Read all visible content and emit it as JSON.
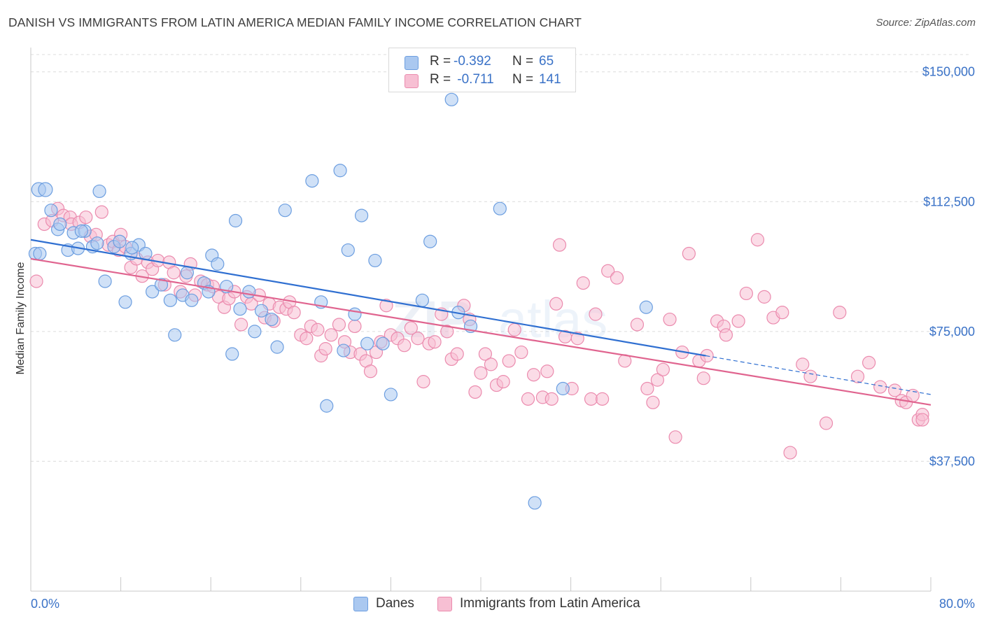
{
  "header": {
    "title": "DANISH VS IMMIGRANTS FROM LATIN AMERICA MEDIAN FAMILY INCOME CORRELATION CHART",
    "source": "Source: ZipAtlas.com"
  },
  "legend": {
    "rows": [
      {
        "r_label": "R =",
        "r_value": "-0.392",
        "n_label": "N =",
        "n_value": "65"
      },
      {
        "r_label": "R =",
        "r_value": " -0.711",
        "n_label": "N =",
        "n_value": "141"
      }
    ]
  },
  "bottom_legend": {
    "danes": "Danes",
    "latin": "Immigrants from Latin America"
  },
  "colors": {
    "danes_fill": "#aac8f0",
    "danes_stroke": "#6c9ee0",
    "danes_line": "#2f6fd1",
    "latin_fill": "#f7bfd3",
    "latin_stroke": "#eb8bae",
    "latin_line": "#e0648f",
    "tick_text": "#3a72c7"
  },
  "chart_data": {
    "type": "scatter",
    "title": "DANISH VS IMMIGRANTS FROM LATIN AMERICA MEDIAN FAMILY INCOME CORRELATION CHART",
    "xlabel": "",
    "ylabel": "Median Family Income",
    "xlim": [
      0,
      80
    ],
    "ylim": [
      0,
      155000
    ],
    "x_tick_labels": [
      "0.0%",
      "80.0%"
    ],
    "y_ticks": [
      37500,
      75000,
      112500,
      150000
    ],
    "y_tick_labels": [
      "$37,500",
      "$75,000",
      "$112,500",
      "$150,000"
    ],
    "grid": true,
    "watermark": "ZIPatlas",
    "series": [
      {
        "name": "Danes",
        "trend": {
          "x0": 0,
          "y0": 101500,
          "x1": 60,
          "y1": 68000,
          "dash_to_x": 80,
          "dash_to_y": 56800
        },
        "points": [
          [
            0.7,
            116000
          ],
          [
            1.3,
            116000
          ],
          [
            1.8,
            110000
          ],
          [
            2.4,
            104500
          ],
          [
            2.6,
            106000
          ],
          [
            3.3,
            98500
          ],
          [
            3.8,
            103500
          ],
          [
            4.2,
            99000
          ],
          [
            4.8,
            104000
          ],
          [
            5.5,
            99500
          ],
          [
            5.9,
            100500
          ],
          [
            6.1,
            115500
          ],
          [
            6.6,
            89500
          ],
          [
            7.4,
            99500
          ],
          [
            7.9,
            101000
          ],
          [
            8.4,
            83500
          ],
          [
            8.9,
            97500
          ],
          [
            9.6,
            100000
          ],
          [
            10.2,
            97500
          ],
          [
            10.8,
            86500
          ],
          [
            11.6,
            88500
          ],
          [
            12.4,
            84000
          ],
          [
            12.8,
            74000
          ],
          [
            13.5,
            85500
          ],
          [
            13.9,
            92000
          ],
          [
            14.3,
            84000
          ],
          [
            15.4,
            89000
          ],
          [
            15.8,
            86500
          ],
          [
            16.1,
            97000
          ],
          [
            16.6,
            94500
          ],
          [
            17.4,
            88000
          ],
          [
            17.9,
            68500
          ],
          [
            18.2,
            107000
          ],
          [
            18.6,
            81500
          ],
          [
            19.4,
            86500
          ],
          [
            19.9,
            75000
          ],
          [
            20.5,
            81000
          ],
          [
            21.4,
            78500
          ],
          [
            21.9,
            70500
          ],
          [
            22.6,
            110000
          ],
          [
            25.0,
            118500
          ],
          [
            25.8,
            83500
          ],
          [
            26.3,
            53500
          ],
          [
            27.5,
            121500
          ],
          [
            27.8,
            69500
          ],
          [
            28.2,
            98500
          ],
          [
            28.8,
            80000
          ],
          [
            29.4,
            108500
          ],
          [
            29.9,
            71500
          ],
          [
            30.6,
            95500
          ],
          [
            31.3,
            71500
          ],
          [
            32.0,
            56800
          ],
          [
            34.8,
            84000
          ],
          [
            35.5,
            101000
          ],
          [
            37.4,
            142000
          ],
          [
            38.0,
            80500
          ],
          [
            39.1,
            76500
          ],
          [
            41.7,
            110500
          ],
          [
            44.8,
            25500
          ],
          [
            47.3,
            58500
          ],
          [
            54.7,
            82000
          ],
          [
            0.4,
            97500
          ],
          [
            0.8,
            97500
          ],
          [
            4.5,
            104000
          ],
          [
            9.0,
            99200
          ]
        ]
      },
      {
        "name": "Immigrants from Latin America",
        "trend": {
          "x0": 0,
          "y0": 96000,
          "x1": 80,
          "y1": 53800
        },
        "points": [
          [
            0.5,
            89500
          ],
          [
            1.2,
            106000
          ],
          [
            1.9,
            107000
          ],
          [
            2.4,
            110500
          ],
          [
            2.9,
            108500
          ],
          [
            3.5,
            108000
          ],
          [
            3.6,
            106000
          ],
          [
            4.3,
            106500
          ],
          [
            4.9,
            108000
          ],
          [
            5.3,
            102500
          ],
          [
            5.8,
            103000
          ],
          [
            6.3,
            109500
          ],
          [
            6.9,
            100000
          ],
          [
            7.3,
            101000
          ],
          [
            7.8,
            98500
          ],
          [
            8.0,
            103000
          ],
          [
            8.4,
            99500
          ],
          [
            8.9,
            93500
          ],
          [
            9.4,
            96000
          ],
          [
            9.9,
            91000
          ],
          [
            10.4,
            95000
          ],
          [
            10.8,
            93000
          ],
          [
            11.3,
            95500
          ],
          [
            11.9,
            88500
          ],
          [
            12.3,
            95000
          ],
          [
            12.7,
            92000
          ],
          [
            13.3,
            86500
          ],
          [
            13.8,
            91000
          ],
          [
            14.2,
            94500
          ],
          [
            14.6,
            85500
          ],
          [
            15.1,
            89500
          ],
          [
            15.7,
            88500
          ],
          [
            16.2,
            88000
          ],
          [
            16.7,
            85000
          ],
          [
            17.2,
            82000
          ],
          [
            17.6,
            84500
          ],
          [
            18.1,
            86500
          ],
          [
            18.7,
            77000
          ],
          [
            19.2,
            85000
          ],
          [
            19.6,
            83000
          ],
          [
            20.3,
            85500
          ],
          [
            20.8,
            79000
          ],
          [
            21.2,
            83000
          ],
          [
            21.6,
            78000
          ],
          [
            22.1,
            82000
          ],
          [
            22.7,
            81500
          ],
          [
            23.0,
            83500
          ],
          [
            23.4,
            80500
          ],
          [
            24.0,
            74000
          ],
          [
            24.5,
            73000
          ],
          [
            24.9,
            76500
          ],
          [
            25.5,
            75500
          ],
          [
            25.8,
            68000
          ],
          [
            26.2,
            70000
          ],
          [
            26.7,
            74000
          ],
          [
            27.4,
            77000
          ],
          [
            27.9,
            72000
          ],
          [
            28.4,
            69000
          ],
          [
            28.8,
            76500
          ],
          [
            29.3,
            68500
          ],
          [
            29.8,
            66500
          ],
          [
            30.2,
            63500
          ],
          [
            30.7,
            69000
          ],
          [
            31.1,
            72000
          ],
          [
            31.6,
            82500
          ],
          [
            32.0,
            74000
          ],
          [
            32.6,
            73000
          ],
          [
            33.2,
            71000
          ],
          [
            33.8,
            76000
          ],
          [
            34.4,
            73000
          ],
          [
            34.9,
            60500
          ],
          [
            35.4,
            71500
          ],
          [
            35.9,
            72000
          ],
          [
            36.5,
            80000
          ],
          [
            37.0,
            75000
          ],
          [
            37.4,
            67000
          ],
          [
            37.9,
            68500
          ],
          [
            38.5,
            82500
          ],
          [
            39.0,
            78500
          ],
          [
            39.5,
            57500
          ],
          [
            40.0,
            63000
          ],
          [
            40.4,
            68500
          ],
          [
            40.9,
            65500
          ],
          [
            41.4,
            59500
          ],
          [
            42.0,
            60500
          ],
          [
            42.5,
            66500
          ],
          [
            43.0,
            75500
          ],
          [
            43.6,
            69000
          ],
          [
            44.2,
            55500
          ],
          [
            44.7,
            62500
          ],
          [
            45.5,
            56000
          ],
          [
            45.9,
            63500
          ],
          [
            46.3,
            55500
          ],
          [
            46.7,
            83000
          ],
          [
            47.0,
            100000
          ],
          [
            47.5,
            73500
          ],
          [
            48.1,
            58500
          ],
          [
            48.6,
            73000
          ],
          [
            49.1,
            89000
          ],
          [
            49.8,
            55500
          ],
          [
            50.2,
            80000
          ],
          [
            50.8,
            55500
          ],
          [
            51.3,
            92500
          ],
          [
            52.1,
            90500
          ],
          [
            52.8,
            66500
          ],
          [
            53.9,
            77000
          ],
          [
            54.8,
            58500
          ],
          [
            55.3,
            54500
          ],
          [
            55.7,
            61000
          ],
          [
            56.2,
            64000
          ],
          [
            56.8,
            78500
          ],
          [
            57.3,
            44500
          ],
          [
            57.9,
            69000
          ],
          [
            58.5,
            97500
          ],
          [
            59.4,
            66500
          ],
          [
            59.8,
            61500
          ],
          [
            60.1,
            68000
          ],
          [
            61.0,
            78000
          ],
          [
            61.6,
            76500
          ],
          [
            61.8,
            74000
          ],
          [
            62.9,
            78000
          ],
          [
            63.6,
            86000
          ],
          [
            64.6,
            101500
          ],
          [
            65.2,
            85000
          ],
          [
            66.0,
            79000
          ],
          [
            66.8,
            80500
          ],
          [
            67.5,
            40000
          ],
          [
            68.6,
            65500
          ],
          [
            69.3,
            62000
          ],
          [
            70.7,
            48500
          ],
          [
            71.9,
            80500
          ],
          [
            73.5,
            62000
          ],
          [
            74.5,
            66000
          ],
          [
            75.5,
            59000
          ],
          [
            76.8,
            58000
          ],
          [
            77.4,
            55000
          ],
          [
            77.8,
            54500
          ],
          [
            78.4,
            56500
          ],
          [
            78.9,
            49500
          ],
          [
            81.4,
            51000
          ],
          [
            83.6,
            49500
          ]
        ]
      }
    ]
  }
}
